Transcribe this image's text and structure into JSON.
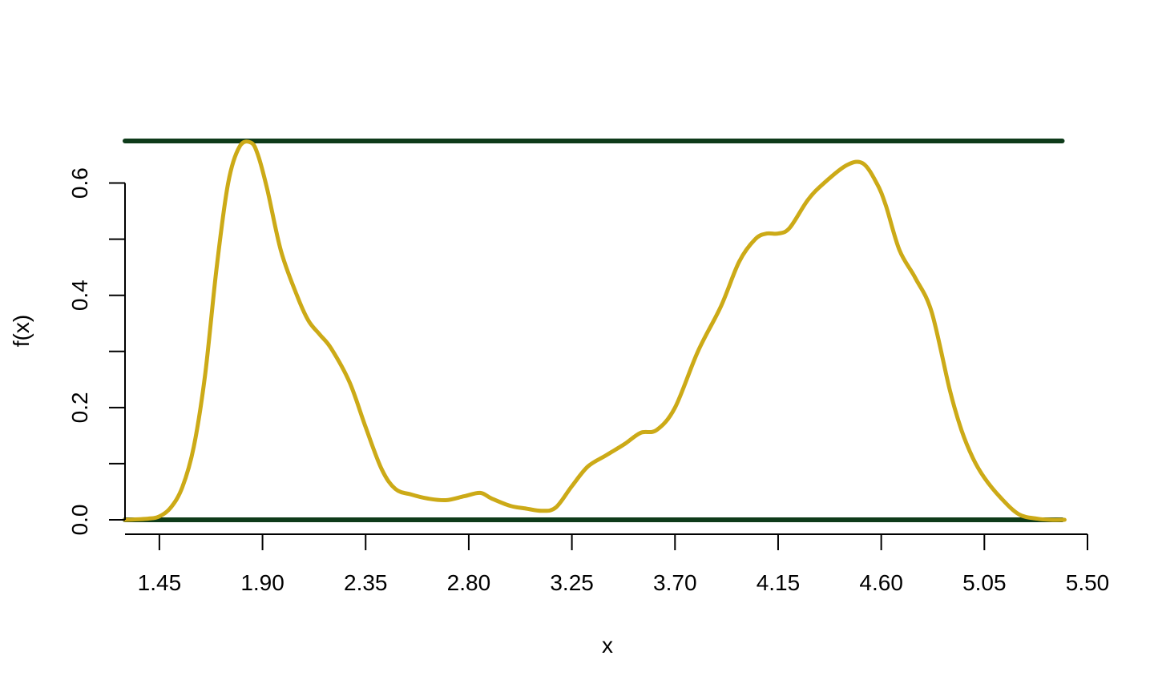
{
  "chart_data": {
    "type": "line",
    "title": "",
    "xlabel": "x",
    "ylabel": "f(x)",
    "xlim": [
      1.3,
      5.5
    ],
    "ylim": [
      0,
      0.675
    ],
    "x_ticks": [
      1.45,
      1.9,
      2.35,
      2.8,
      3.25,
      3.7,
      4.15,
      4.6,
      5.05,
      5.5
    ],
    "x_tick_labels": [
      "1.45",
      "1.90",
      "2.35",
      "2.80",
      "3.25",
      "3.70",
      "4.15",
      "4.60",
      "5.05",
      "5.50"
    ],
    "y_ticks": [
      0,
      0.1,
      0.2,
      0.3,
      0.4,
      0.5,
      0.6
    ],
    "y_tick_labels": [
      "0.0",
      "",
      "0.2",
      "",
      "0.4",
      "",
      "0.6"
    ],
    "grid": false,
    "legend": "none",
    "series": [
      {
        "color": "#CCAA17",
        "x": [
          1.3,
          1.4,
          1.45,
          1.5,
          1.55,
          1.6,
          1.65,
          1.7,
          1.75,
          1.8,
          1.85,
          1.88,
          1.92,
          1.98,
          2.05,
          2.1,
          2.15,
          2.2,
          2.28,
          2.35,
          2.42,
          2.48,
          2.55,
          2.62,
          2.7,
          2.78,
          2.85,
          2.9,
          2.98,
          3.05,
          3.12,
          3.18,
          3.25,
          3.32,
          3.4,
          3.48,
          3.55,
          3.62,
          3.7,
          3.8,
          3.9,
          3.98,
          4.05,
          4.1,
          4.15,
          4.2,
          4.28,
          4.35,
          4.45,
          4.52,
          4.58,
          4.62,
          4.68,
          4.75,
          4.82,
          4.9,
          4.95,
          5.0,
          5.05,
          5.12,
          5.2,
          5.28,
          5.34,
          5.4
        ],
        "y": [
          0.0,
          0.002,
          0.006,
          0.022,
          0.058,
          0.13,
          0.26,
          0.45,
          0.6,
          0.665,
          0.672,
          0.65,
          0.59,
          0.48,
          0.4,
          0.355,
          0.33,
          0.305,
          0.245,
          0.165,
          0.09,
          0.055,
          0.045,
          0.038,
          0.035,
          0.042,
          0.048,
          0.038,
          0.025,
          0.02,
          0.016,
          0.022,
          0.06,
          0.095,
          0.115,
          0.135,
          0.155,
          0.16,
          0.2,
          0.3,
          0.38,
          0.46,
          0.5,
          0.51,
          0.51,
          0.52,
          0.57,
          0.6,
          0.632,
          0.635,
          0.6,
          0.56,
          0.48,
          0.43,
          0.37,
          0.23,
          0.16,
          0.11,
          0.075,
          0.04,
          0.01,
          0.002,
          0.0,
          0.0
        ]
      }
    ],
    "reference_lines": [
      {
        "y": 0.0,
        "x_range": [
          1.3,
          5.39
        ],
        "color": "#0E3B1A"
      },
      {
        "y": 0.675,
        "x_range": [
          1.3,
          5.39
        ],
        "color": "#0E3B1A"
      }
    ]
  }
}
